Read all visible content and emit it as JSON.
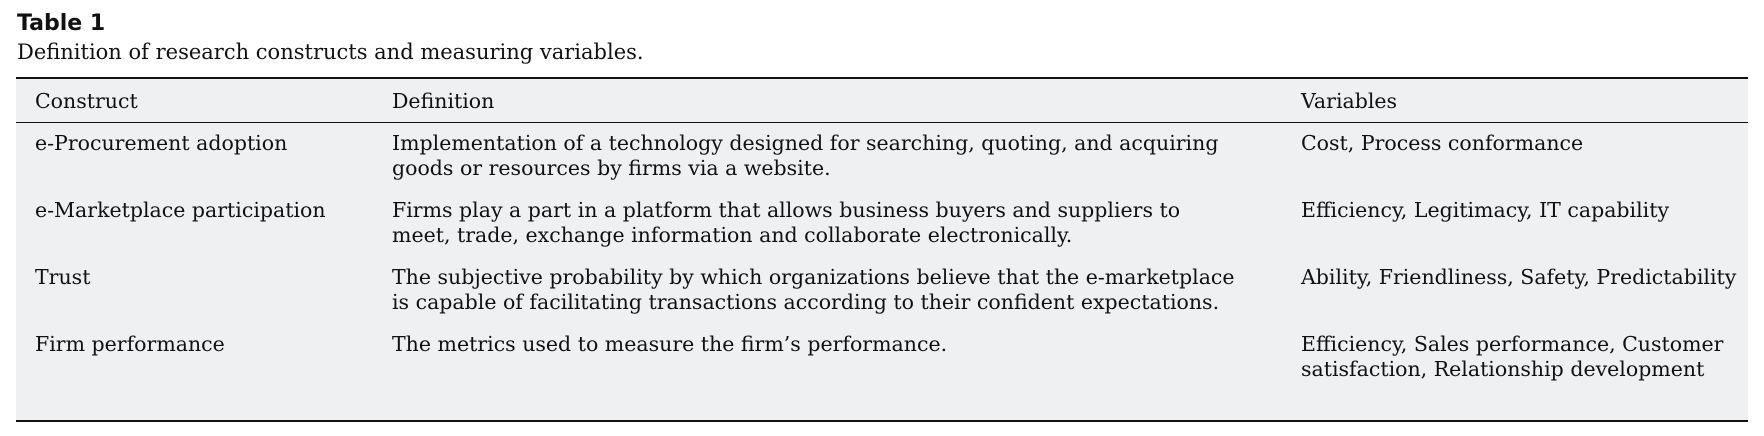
{
  "caption": {
    "title": "Table 1",
    "subtitle": "Definition of research constructs and measuring variables."
  },
  "table": {
    "headers": [
      "Construct",
      "Definition",
      "Variables"
    ],
    "rows": [
      {
        "construct": "e-Procurement adoption",
        "definition": [
          "Implementation of a technology designed for searching, quoting, and acquiring",
          "goods or resources by firms via a website."
        ],
        "variables": [
          "Cost, Process conformance"
        ]
      },
      {
        "construct": "e-Marketplace participation",
        "definition": [
          "Firms play a part in a platform that allows business buyers and suppliers to",
          "meet, trade, exchange information and collaborate electronically."
        ],
        "variables": [
          "Efficiency, Legitimacy, IT capability"
        ]
      },
      {
        "construct": "Trust",
        "definition": [
          "The subjective probability by which organizations believe that the e-marketplace",
          "is capable of facilitating transactions according to their confident expectations."
        ],
        "variables": [
          "Ability, Friendliness, Safety, Predictability"
        ]
      },
      {
        "construct": "Firm performance",
        "definition": [
          "The metrics used to measure the firm’s performance."
        ],
        "variables": [
          "Efficiency, Sales performance, Customer",
          "satisfaction, Relationship development"
        ]
      }
    ]
  }
}
